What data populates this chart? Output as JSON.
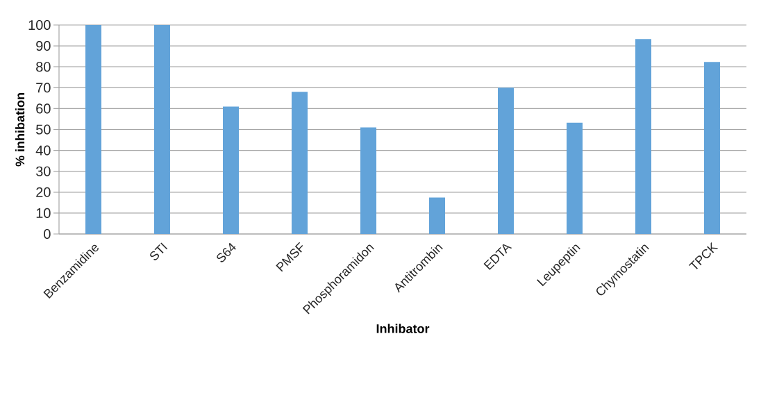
{
  "chart_data": {
    "type": "bar",
    "xlabel": "Inhibator",
    "ylabel": "% inhibation",
    "categories": [
      "Benzamidine",
      "STI",
      "S64",
      "PMSF",
      "Phosphoramidon",
      "Antitrombin",
      "EDTA",
      "Leupeptin",
      "Chymostatin",
      "TPCK"
    ],
    "values": [
      100,
      100,
      61,
      68,
      51,
      17.4,
      70,
      53.2,
      93.3,
      82.3
    ],
    "color": "#62a3d9",
    "ylim": [
      0,
      100
    ],
    "yticks": [
      0,
      10,
      20,
      30,
      40,
      50,
      60,
      70,
      80,
      90,
      100
    ],
    "grid": "y"
  }
}
